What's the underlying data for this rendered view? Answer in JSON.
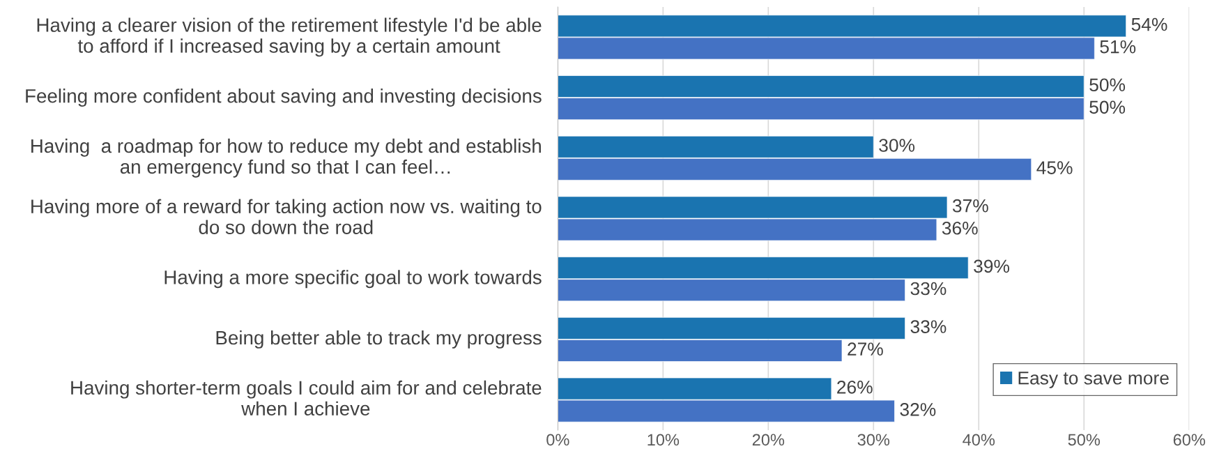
{
  "chart_data": {
    "type": "bar",
    "orientation": "horizontal",
    "categories": [
      "Having a clearer vision of the retirement lifestyle I'd be able to afford if I increased saving by a certain amount",
      "Feeling more confident about saving and investing decisions",
      "Having  a roadmap for how to reduce my debt and establish an emergency fund so that I can feel…",
      "Having more of a reward for taking action now vs. waiting to do so down the road",
      "Having a more specific goal to work towards",
      "Being better able to track my progress",
      "Having shorter-term goals I could aim for and celebrate when I achieve"
    ],
    "series": [
      {
        "name": "Easy to save more",
        "color": "#1a74b0",
        "values": [
          54,
          50,
          30,
          37,
          39,
          33,
          26
        ],
        "value_labels": [
          "54%",
          "50%",
          "30%",
          "37%",
          "39%",
          "33%",
          "26%"
        ]
      },
      {
        "color": "#4472c4",
        "values": [
          51,
          50,
          45,
          36,
          33,
          27,
          32
        ],
        "value_labels": [
          "51%",
          "50%",
          "45%",
          "36%",
          "33%",
          "27%",
          "32%"
        ]
      }
    ],
    "xlim": [
      0,
      60
    ],
    "xticks": [
      {
        "value": 0,
        "label": "0%"
      },
      {
        "value": 10,
        "label": "10%"
      },
      {
        "value": 20,
        "label": "20%"
      },
      {
        "value": 30,
        "label": "30%"
      },
      {
        "value": 40,
        "label": "40%"
      },
      {
        "value": 50,
        "label": "50%"
      },
      {
        "value": 60,
        "label": "60%"
      }
    ],
    "grid": "x",
    "legend": "bottom right"
  }
}
